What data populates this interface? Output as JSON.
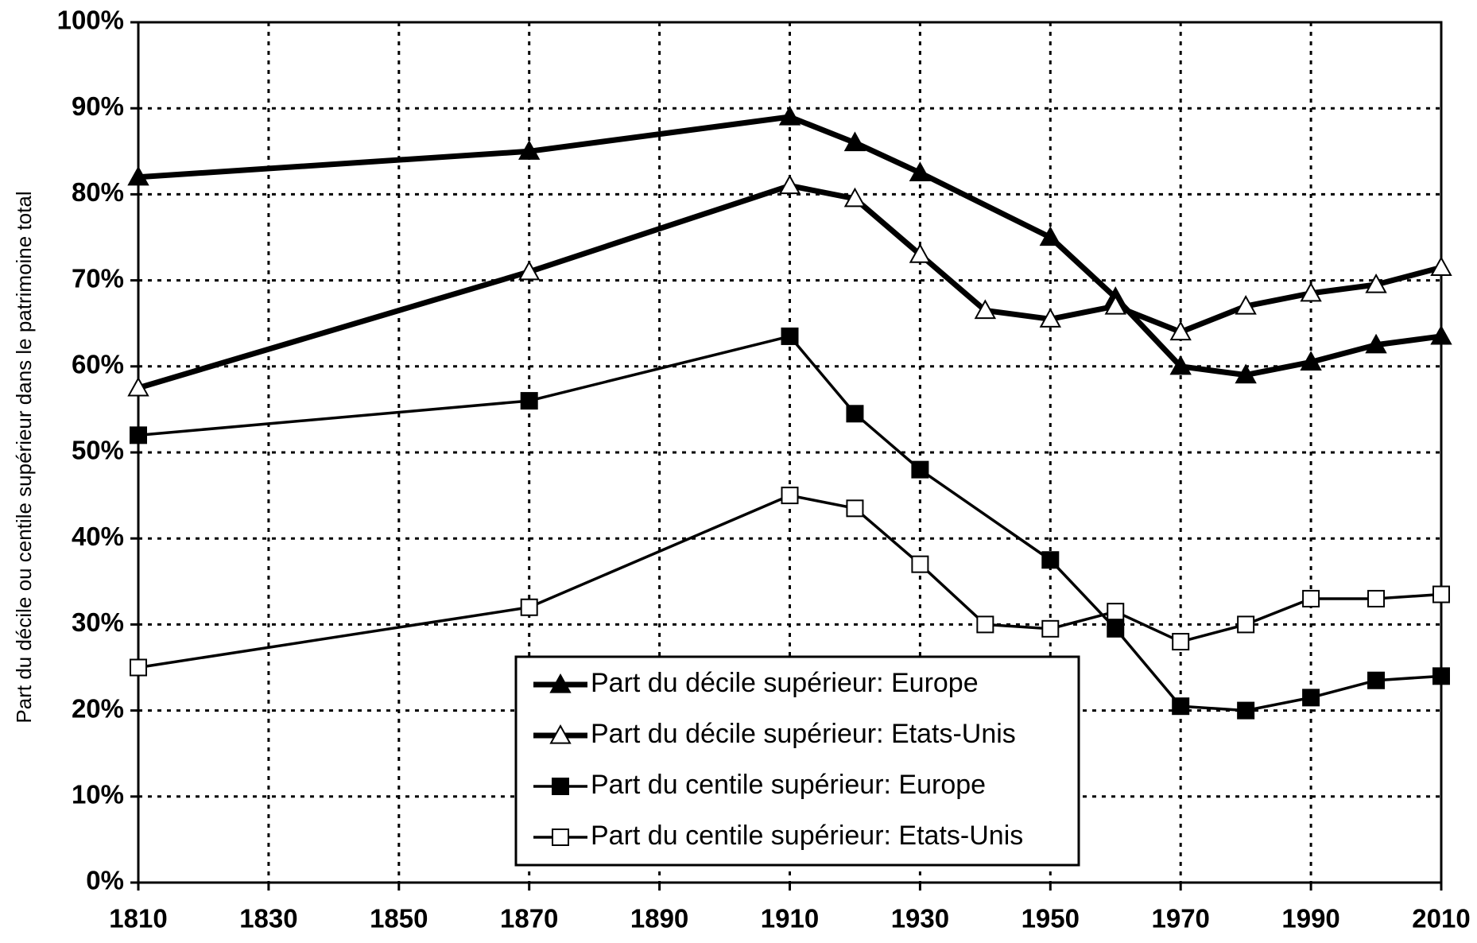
{
  "chart_data": {
    "type": "line",
    "y_label": "Part du décile ou centile supérieur dans le patrimoine total",
    "xlim": [
      1810,
      2010
    ],
    "xticks": [
      1810,
      1830,
      1850,
      1870,
      1890,
      1910,
      1930,
      1950,
      1970,
      1990,
      2010
    ],
    "ylim": [
      0,
      100
    ],
    "yticks": [
      {
        "value": 0,
        "label": "0%"
      },
      {
        "value": 10,
        "label": "10%"
      },
      {
        "value": 20,
        "label": "20%"
      },
      {
        "value": 30,
        "label": "30%"
      },
      {
        "value": 40,
        "label": "40%"
      },
      {
        "value": 50,
        "label": "50%"
      },
      {
        "value": 60,
        "label": "60%"
      },
      {
        "value": 70,
        "label": "70%"
      },
      {
        "value": 80,
        "label": "80%"
      },
      {
        "value": 90,
        "label": "90%"
      },
      {
        "value": 100,
        "label": "100%"
      }
    ],
    "grid": true,
    "grid_style": "dotted",
    "legend": "bottom-center",
    "series": [
      {
        "name": "Part du décile supérieur: Europe",
        "color": "#000000",
        "marker": "triangle",
        "filled": true,
        "width": 7,
        "x": [
          1810,
          1870,
          1910,
          1920,
          1930,
          1950,
          1960,
          1970,
          1980,
          1990,
          2000,
          2010
        ],
        "values": [
          82,
          85,
          89,
          86,
          82.5,
          75,
          68,
          60,
          59,
          60.5,
          62.5,
          63.5
        ]
      },
      {
        "name": "Part du décile supérieur: Etats-Unis",
        "color": "#000000",
        "marker": "triangle",
        "filled": false,
        "width": 7,
        "x": [
          1810,
          1870,
          1910,
          1920,
          1930,
          1940,
          1950,
          1960,
          1970,
          1980,
          1990,
          2000,
          2010
        ],
        "values": [
          57.5,
          71,
          81,
          79.5,
          73,
          66.5,
          65.5,
          67,
          64,
          67,
          68.5,
          69.5,
          71.5
        ]
      },
      {
        "name": "Part du centile supérieur: Europe",
        "color": "#000000",
        "marker": "square",
        "filled": true,
        "width": 3.5,
        "x": [
          1810,
          1870,
          1910,
          1920,
          1930,
          1950,
          1960,
          1970,
          1980,
          1990,
          2000,
          2010
        ],
        "values": [
          52,
          56,
          63.5,
          54.5,
          48,
          37.5,
          29.5,
          20.5,
          20,
          21.5,
          23.5,
          24
        ]
      },
      {
        "name": "Part du centile supérieur: Etats-Unis",
        "color": "#000000",
        "marker": "square",
        "filled": false,
        "width": 3.5,
        "x": [
          1810,
          1870,
          1910,
          1920,
          1930,
          1940,
          1950,
          1960,
          1970,
          1980,
          1990,
          2000,
          2010
        ],
        "values": [
          25,
          32,
          45,
          43.5,
          37,
          30,
          29.5,
          31.5,
          28,
          30,
          33,
          33,
          33.5
        ]
      }
    ]
  }
}
